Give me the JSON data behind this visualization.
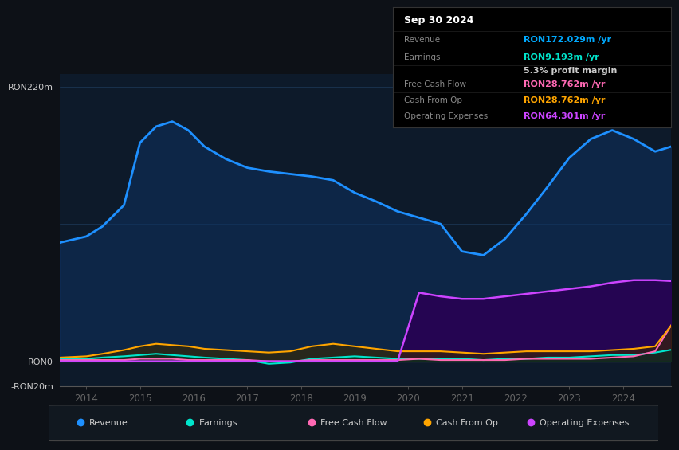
{
  "bg_color": "#0d1117",
  "plot_bg_color": "#0d1a2a",
  "grid_color": "#1e3a5a",
  "title": "Sep 30 2024",
  "info_rows": [
    {
      "label": "Revenue",
      "value": "RON172.029m /yr",
      "value_color": "#00aaff",
      "label_color": "#888888"
    },
    {
      "label": "Earnings",
      "value": "RON9.193m /yr",
      "value_color": "#00e5cc",
      "label_color": "#888888"
    },
    {
      "label": "",
      "value": "5.3% profit margin",
      "value_color": "#cccccc",
      "label_color": "#888888"
    },
    {
      "label": "Free Cash Flow",
      "value": "RON28.762m /yr",
      "value_color": "#ff69b4",
      "label_color": "#888888"
    },
    {
      "label": "Cash From Op",
      "value": "RON28.762m /yr",
      "value_color": "#ffa500",
      "label_color": "#888888"
    },
    {
      "label": "Operating Expenses",
      "value": "RON64.301m /yr",
      "value_color": "#cc44ff",
      "label_color": "#888888"
    }
  ],
  "ylabel_top": "RON220m",
  "ylabel_zero": "RON0",
  "ylabel_bottom": "-RON20m",
  "ylim": [
    -20,
    230
  ],
  "years": [
    2013.5,
    2014.0,
    2014.3,
    2014.7,
    2015.0,
    2015.3,
    2015.6,
    2015.9,
    2016.2,
    2016.6,
    2017.0,
    2017.4,
    2017.8,
    2018.2,
    2018.6,
    2019.0,
    2019.4,
    2019.8,
    2020.2,
    2020.6,
    2021.0,
    2021.4,
    2021.8,
    2022.2,
    2022.6,
    2023.0,
    2023.4,
    2023.8,
    2024.2,
    2024.6,
    2024.9
  ],
  "revenue": [
    95,
    100,
    108,
    125,
    175,
    188,
    192,
    185,
    172,
    162,
    155,
    152,
    150,
    148,
    145,
    135,
    128,
    120,
    115,
    110,
    88,
    85,
    98,
    118,
    140,
    163,
    178,
    185,
    178,
    168,
    172
  ],
  "earnings": [
    2,
    2,
    3,
    4,
    5,
    6,
    5,
    4,
    3,
    2,
    1,
    -2,
    -1,
    2,
    3,
    4,
    3,
    2,
    2,
    2,
    2,
    1,
    2,
    2,
    3,
    3,
    4,
    5,
    5,
    7,
    9.2
  ],
  "free_cash_flow": [
    1,
    1,
    1,
    1,
    2,
    2,
    2,
    1,
    1,
    1,
    1,
    0,
    0,
    1,
    1,
    1,
    1,
    1,
    2,
    1,
    1,
    1,
    1,
    2,
    2,
    2,
    2,
    3,
    4,
    8,
    28.8
  ],
  "cash_from_op": [
    3,
    4,
    6,
    9,
    12,
    14,
    13,
    12,
    10,
    9,
    8,
    7,
    8,
    12,
    14,
    12,
    10,
    8,
    8,
    8,
    7,
    6,
    7,
    8,
    8,
    8,
    8,
    9,
    10,
    12,
    28.8
  ],
  "operating_expenses": [
    0,
    0,
    0,
    0,
    0,
    0,
    0,
    0,
    0,
    0,
    0,
    0,
    0,
    0,
    0,
    0,
    0,
    0,
    55,
    52,
    50,
    50,
    52,
    54,
    56,
    58,
    60,
    63,
    65,
    65,
    64.3
  ],
  "revenue_color": "#1e90ff",
  "revenue_fill": "#0d3060",
  "earnings_color": "#00e5cc",
  "earnings_fill": "#003322",
  "fcf_color": "#ff69b4",
  "fcf_fill": "#3a0020",
  "cfop_color": "#ffa500",
  "cfop_fill": "#3a2800",
  "opex_color": "#cc44ff",
  "opex_fill": "#2a0055",
  "legend_items": [
    {
      "label": "Revenue",
      "color": "#1e90ff"
    },
    {
      "label": "Earnings",
      "color": "#00e5cc"
    },
    {
      "label": "Free Cash Flow",
      "color": "#ff69b4"
    },
    {
      "label": "Cash From Op",
      "color": "#ffa500"
    },
    {
      "label": "Operating Expenses",
      "color": "#cc44ff"
    }
  ],
  "xticks": [
    2014,
    2015,
    2016,
    2017,
    2018,
    2019,
    2020,
    2021,
    2022,
    2023,
    2024
  ],
  "zero_line_y": 0,
  "hlines": [
    220,
    110,
    0,
    -20
  ]
}
